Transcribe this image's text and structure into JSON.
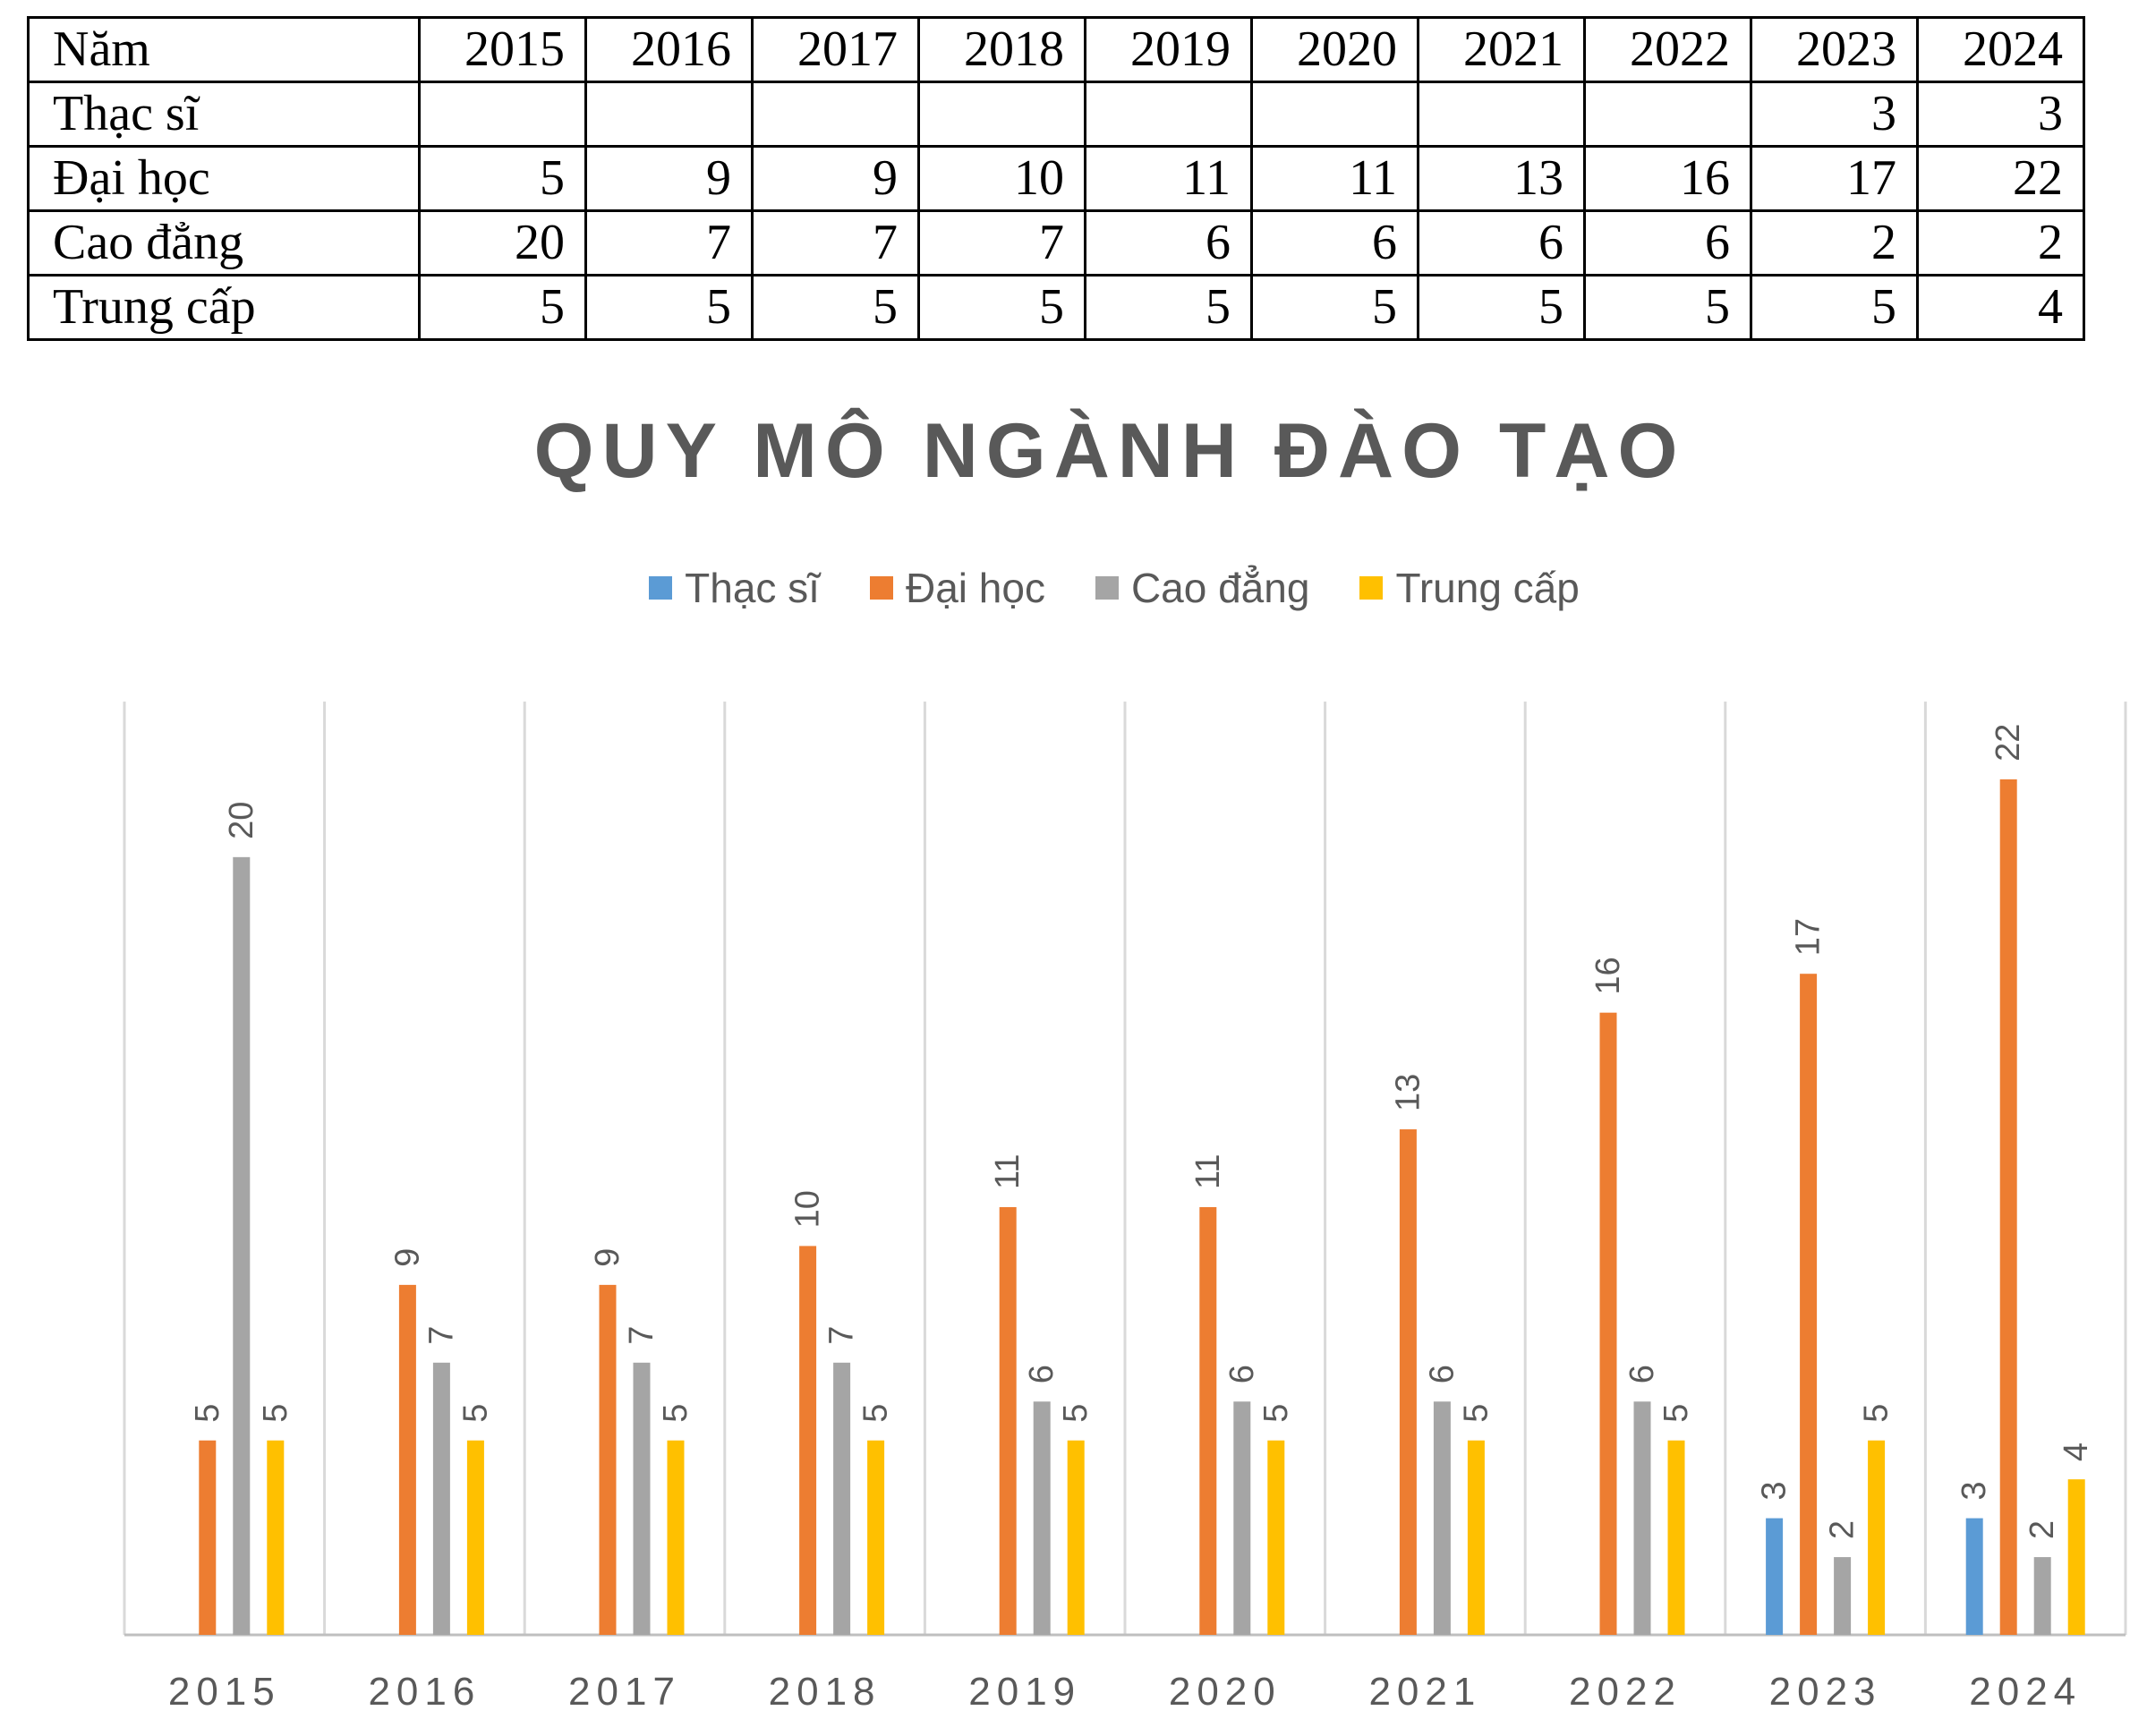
{
  "table": {
    "header": [
      "Năm",
      "2015",
      "2016",
      "2017",
      "2018",
      "2019",
      "2020",
      "2021",
      "2022",
      "2023",
      "2024"
    ],
    "rows": [
      [
        "Thạc sĩ",
        "",
        "",
        "",
        "",
        "",
        "",
        "",
        "",
        "3",
        "3"
      ],
      [
        "Đại học",
        "5",
        "9",
        "9",
        "10",
        "11",
        "11",
        "13",
        "16",
        "17",
        "22"
      ],
      [
        "Cao đẳng",
        "20",
        "7",
        "7",
        "7",
        "6",
        "6",
        "6",
        "6",
        "2",
        "2"
      ],
      [
        "Trung cấp",
        "5",
        "5",
        "5",
        "5",
        "5",
        "5",
        "5",
        "5",
        "5",
        "4"
      ]
    ]
  },
  "chart_data": {
    "type": "bar",
    "title": "QUY MÔ NGÀNH ĐÀO TẠO",
    "xlabel": "",
    "ylabel": "",
    "ylim": [
      0,
      24
    ],
    "grid": "vertical category separators",
    "legend_position": "top",
    "categories": [
      "2015",
      "2016",
      "2017",
      "2018",
      "2019",
      "2020",
      "2021",
      "2022",
      "2023",
      "2024"
    ],
    "series": [
      {
        "name": "Thạc sĩ",
        "color": "#5B9BD5",
        "values": [
          null,
          null,
          null,
          null,
          null,
          null,
          null,
          null,
          3,
          3
        ]
      },
      {
        "name": "Đại học",
        "color": "#ED7D31",
        "values": [
          5,
          9,
          9,
          10,
          11,
          11,
          13,
          16,
          17,
          22
        ]
      },
      {
        "name": "Cao đẳng",
        "color": "#A5A5A5",
        "values": [
          20,
          7,
          7,
          7,
          6,
          6,
          6,
          6,
          2,
          2
        ]
      },
      {
        "name": "Trung cấp",
        "color": "#FFC000",
        "values": [
          5,
          5,
          5,
          5,
          5,
          5,
          5,
          5,
          5,
          4
        ]
      }
    ]
  }
}
